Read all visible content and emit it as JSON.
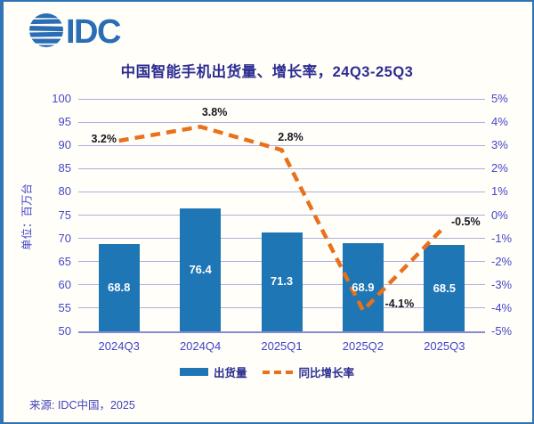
{
  "logo": {
    "text": "IDC"
  },
  "title": "中国智能手机出货量、增长率，24Q3-25Q3",
  "y_axis_unit": "单位：百万台",
  "source": "来源: IDC中国，2025",
  "colors": {
    "bar": "#1e76b4",
    "line": "#e8711c",
    "grid": "#aeaedd",
    "axis_text": "#4646c8",
    "title_text": "#2d2d91",
    "border": "#2f75b5",
    "logo_blue": "#2a6db5"
  },
  "legend": {
    "shipments_label": "出货量",
    "growth_label": "同比增长率"
  },
  "chart_data": {
    "type": "bar",
    "subtype": "combo-bar-line",
    "title": "中国智能手机出货量、增长率，24Q3-25Q3",
    "categories": [
      "2024Q3",
      "2024Q4",
      "2025Q1",
      "2025Q2",
      "2025Q3"
    ],
    "series": [
      {
        "name": "出货量",
        "type": "bar",
        "axis": "left",
        "unit": "百万台",
        "values": [
          68.8,
          76.4,
          71.3,
          68.9,
          68.5
        ],
        "labels": [
          "68.8",
          "76.4",
          "71.3",
          "68.9",
          "68.5"
        ],
        "color": "#1e76b4"
      },
      {
        "name": "同比增长率",
        "type": "line",
        "style": "dashed",
        "axis": "right",
        "unit": "%",
        "values": [
          3.2,
          3.8,
          2.8,
          -4.1,
          -0.5
        ],
        "labels": [
          "3.2%",
          "3.8%",
          "2.8%",
          "-4.1%",
          "-0.5%"
        ],
        "color": "#e8711c"
      }
    ],
    "left_axis": {
      "min": 50,
      "max": 100,
      "step": 5,
      "ticks": [
        "100",
        "95",
        "90",
        "85",
        "80",
        "75",
        "70",
        "65",
        "60",
        "55",
        "50"
      ]
    },
    "right_axis": {
      "min": -5,
      "max": 5,
      "step": 1,
      "ticks": [
        "5%",
        "4%",
        "3%",
        "2%",
        "1%",
        "0%",
        "-1%",
        "-2%",
        "-3%",
        "-4%",
        "-5%"
      ]
    },
    "grid": true,
    "legend_position": "bottom"
  }
}
